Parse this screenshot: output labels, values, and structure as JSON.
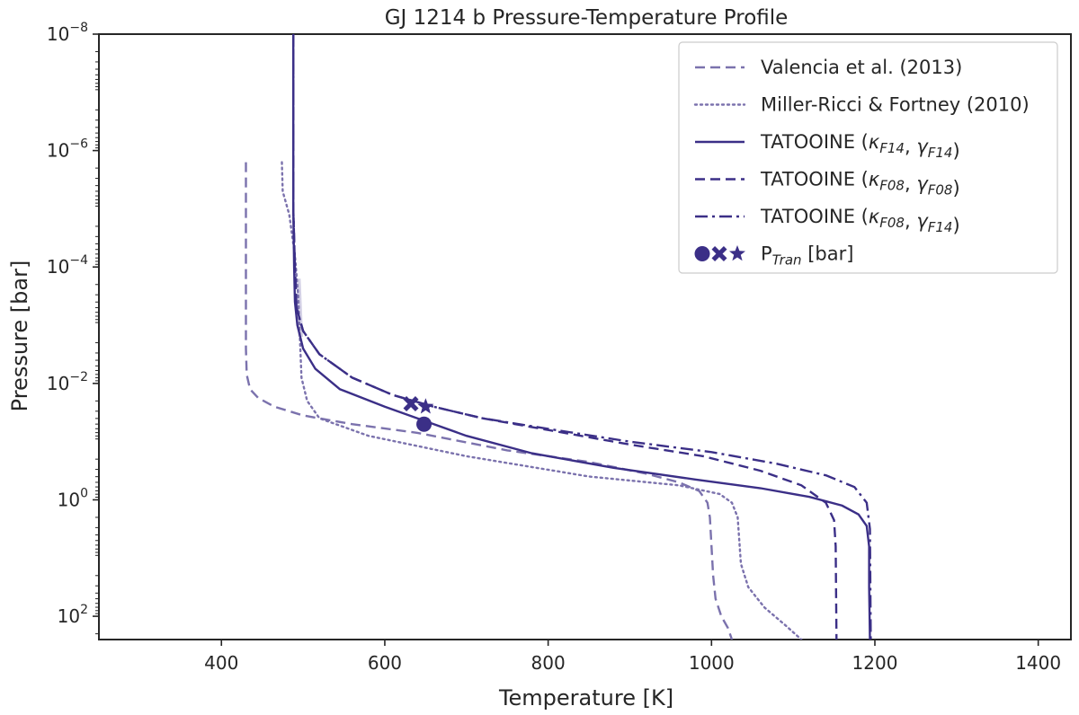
{
  "chart_data": {
    "type": "line",
    "title": "GJ 1214 b Pressure-Temperature Profile",
    "xlabel": "Temperature [K]",
    "ylabel": "Pressure [bar]",
    "xlim": [
      250,
      1440
    ],
    "ylim_log10": [
      -8,
      2.4
    ],
    "y_scale": "log",
    "y_inverted": true,
    "grid": false,
    "legend_position": "top-right",
    "x_ticks": [
      {
        "value": 400,
        "label": "400"
      },
      {
        "value": 600,
        "label": "600"
      },
      {
        "value": 800,
        "label": "800"
      },
      {
        "value": 1000,
        "label": "1000"
      },
      {
        "value": 1200,
        "label": "1200"
      },
      {
        "value": 1400,
        "label": "1400"
      }
    ],
    "y_ticks": [
      {
        "log10": -8,
        "base": "10",
        "exp": "−8"
      },
      {
        "log10": -6,
        "base": "10",
        "exp": "−6"
      },
      {
        "log10": -4,
        "base": "10",
        "exp": "−4"
      },
      {
        "log10": -2,
        "base": "10",
        "exp": "−2"
      },
      {
        "log10": 0,
        "base": "10",
        "exp": "0"
      },
      {
        "log10": 2,
        "base": "10",
        "exp": "2"
      }
    ],
    "series": [
      {
        "id": "valencia",
        "name": "Valencia et al. (2013)",
        "color": "#7b72ad",
        "style": "dashed",
        "points": [
          [
            430,
            -5.8
          ],
          [
            430,
            -2.6
          ],
          [
            431,
            -2.15
          ],
          [
            435,
            -1.9
          ],
          [
            445,
            -1.75
          ],
          [
            465,
            -1.6
          ],
          [
            500,
            -1.45
          ],
          [
            560,
            -1.3
          ],
          [
            640,
            -1.15
          ],
          [
            750,
            -0.85
          ],
          [
            850,
            -0.65
          ],
          [
            920,
            -0.45
          ],
          [
            960,
            -0.3
          ],
          [
            985,
            -0.15
          ],
          [
            995,
            0.05
          ],
          [
            998,
            0.3
          ],
          [
            1000,
            0.8
          ],
          [
            1002,
            1.3
          ],
          [
            1005,
            1.7
          ],
          [
            1012,
            2.0
          ],
          [
            1020,
            2.2
          ],
          [
            1025,
            2.4
          ]
        ]
      },
      {
        "id": "miller-ricci",
        "name": "Miller-Ricci & Fortney (2010)",
        "color": "#7b72ad",
        "style": "dotted",
        "points": [
          [
            474,
            -5.8
          ],
          [
            475,
            -5.3
          ],
          [
            483,
            -4.9
          ],
          [
            490,
            -4.2
          ],
          [
            494,
            -3.5
          ],
          [
            496,
            -2.8
          ],
          [
            498,
            -2.1
          ],
          [
            505,
            -1.7
          ],
          [
            520,
            -1.4
          ],
          [
            580,
            -1.1
          ],
          [
            700,
            -0.75
          ],
          [
            850,
            -0.4
          ],
          [
            960,
            -0.25
          ],
          [
            1010,
            -0.1
          ],
          [
            1025,
            0.05
          ],
          [
            1032,
            0.3
          ],
          [
            1034,
            0.7
          ],
          [
            1036,
            1.1
          ],
          [
            1045,
            1.5
          ],
          [
            1065,
            1.85
          ],
          [
            1090,
            2.15
          ],
          [
            1110,
            2.4
          ]
        ]
      },
      {
        "id": "f14f14",
        "name": "TATOOINE (κF14, γF14)",
        "label_prefix": "TATOOINE (",
        "kappa": "κ",
        "kappa_sub": "F14",
        "gamma": "γ",
        "gamma_sub": "F14",
        "color": "#3b2f87",
        "style": "solid",
        "points": [
          [
            488,
            -8
          ],
          [
            488,
            -5
          ],
          [
            489,
            -4
          ],
          [
            490,
            -3.4
          ],
          [
            493,
            -3
          ],
          [
            500,
            -2.6
          ],
          [
            515,
            -2.25
          ],
          [
            545,
            -1.9
          ],
          [
            600,
            -1.6
          ],
          [
            650,
            -1.35
          ],
          [
            700,
            -1.1
          ],
          [
            780,
            -0.8
          ],
          [
            880,
            -0.55
          ],
          [
            980,
            -0.35
          ],
          [
            1060,
            -0.2
          ],
          [
            1120,
            -0.05
          ],
          [
            1160,
            0.1
          ],
          [
            1180,
            0.25
          ],
          [
            1190,
            0.45
          ],
          [
            1193,
            0.8
          ],
          [
            1193,
            1.5
          ],
          [
            1194,
            2.4
          ]
        ]
      },
      {
        "id": "f08f08",
        "name": "TATOOINE (κF08, γF08)",
        "label_prefix": "TATOOINE (",
        "kappa": "κ",
        "kappa_sub": "F08",
        "gamma": "γ",
        "gamma_sub": "F08",
        "color": "#3b2f87",
        "style": "dashed",
        "points": [
          [
            488,
            -8
          ],
          [
            488,
            -5
          ],
          [
            490,
            -4
          ],
          [
            492,
            -3.3
          ],
          [
            500,
            -2.9
          ],
          [
            520,
            -2.5
          ],
          [
            560,
            -2.1
          ],
          [
            610,
            -1.8
          ],
          [
            660,
            -1.6
          ],
          [
            720,
            -1.4
          ],
          [
            800,
            -1.2
          ],
          [
            900,
            -0.95
          ],
          [
            990,
            -0.75
          ],
          [
            1060,
            -0.5
          ],
          [
            1110,
            -0.25
          ],
          [
            1140,
            0.05
          ],
          [
            1150,
            0.35
          ],
          [
            1152,
            0.8
          ],
          [
            1153,
            2.4
          ]
        ]
      },
      {
        "id": "f08f14",
        "name": "TATOOINE (κF08, γF14)",
        "label_prefix": "TATOOINE (",
        "kappa": "κ",
        "kappa_sub": "F08",
        "gamma": "γ",
        "gamma_sub": "F14",
        "color": "#3b2f87",
        "style": "dashdot",
        "points": [
          [
            488,
            -8
          ],
          [
            488,
            -5
          ],
          [
            490,
            -4
          ],
          [
            492,
            -3.3
          ],
          [
            500,
            -2.9
          ],
          [
            520,
            -2.5
          ],
          [
            560,
            -2.1
          ],
          [
            610,
            -1.8
          ],
          [
            660,
            -1.6
          ],
          [
            720,
            -1.4
          ],
          [
            800,
            -1.22
          ],
          [
            900,
            -1.0
          ],
          [
            1000,
            -0.82
          ],
          [
            1080,
            -0.62
          ],
          [
            1140,
            -0.42
          ],
          [
            1175,
            -0.22
          ],
          [
            1190,
            0.05
          ],
          [
            1194,
            0.5
          ],
          [
            1195,
            2.4
          ]
        ]
      }
    ],
    "markers": {
      "legend_label_prefix": "P",
      "legend_label_sub": "Tran",
      "legend_label_suffix": " [bar]",
      "color": "#3b2f87",
      "points": [
        {
          "shape": "circle",
          "x": 648,
          "y_log10": -1.3
        },
        {
          "shape": "x",
          "x": 632,
          "y_log10": -1.65
        },
        {
          "shape": "star",
          "x": 650,
          "y_log10": -1.6
        }
      ]
    }
  }
}
